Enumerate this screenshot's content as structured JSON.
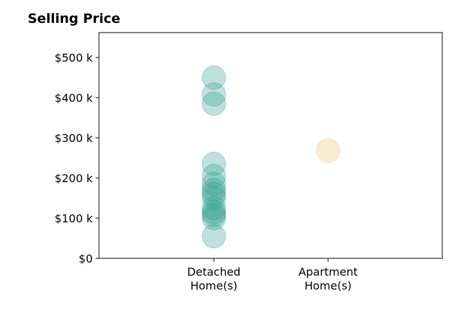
{
  "chart_data": {
    "type": "scatter",
    "title": "Selling Price",
    "xlabel": "",
    "ylabel": "",
    "categories": [
      {
        "lines": [
          "Detached",
          "Home(s)"
        ]
      },
      {
        "lines": [
          "Apartment",
          "Home(s)"
        ]
      }
    ],
    "ylim": [
      0,
      562
    ],
    "yticks": [
      {
        "value": 0,
        "label": "$0"
      },
      {
        "value": 100,
        "label": "$100 k"
      },
      {
        "value": 200,
        "label": "$200 k"
      },
      {
        "value": 300,
        "label": "$300 k"
      },
      {
        "value": 400,
        "label": "$400 k"
      },
      {
        "value": 500,
        "label": "$500 k"
      }
    ],
    "grid": false,
    "series": [
      {
        "category": 0,
        "color": "#2a9d8f",
        "values": [
          450,
          408,
          385,
          235,
          205,
          185,
          170,
          160,
          150,
          125,
          115,
          108,
          100,
          55
        ]
      },
      {
        "category": 1,
        "color": "#e9c46a",
        "values": [
          268
        ]
      }
    ]
  }
}
